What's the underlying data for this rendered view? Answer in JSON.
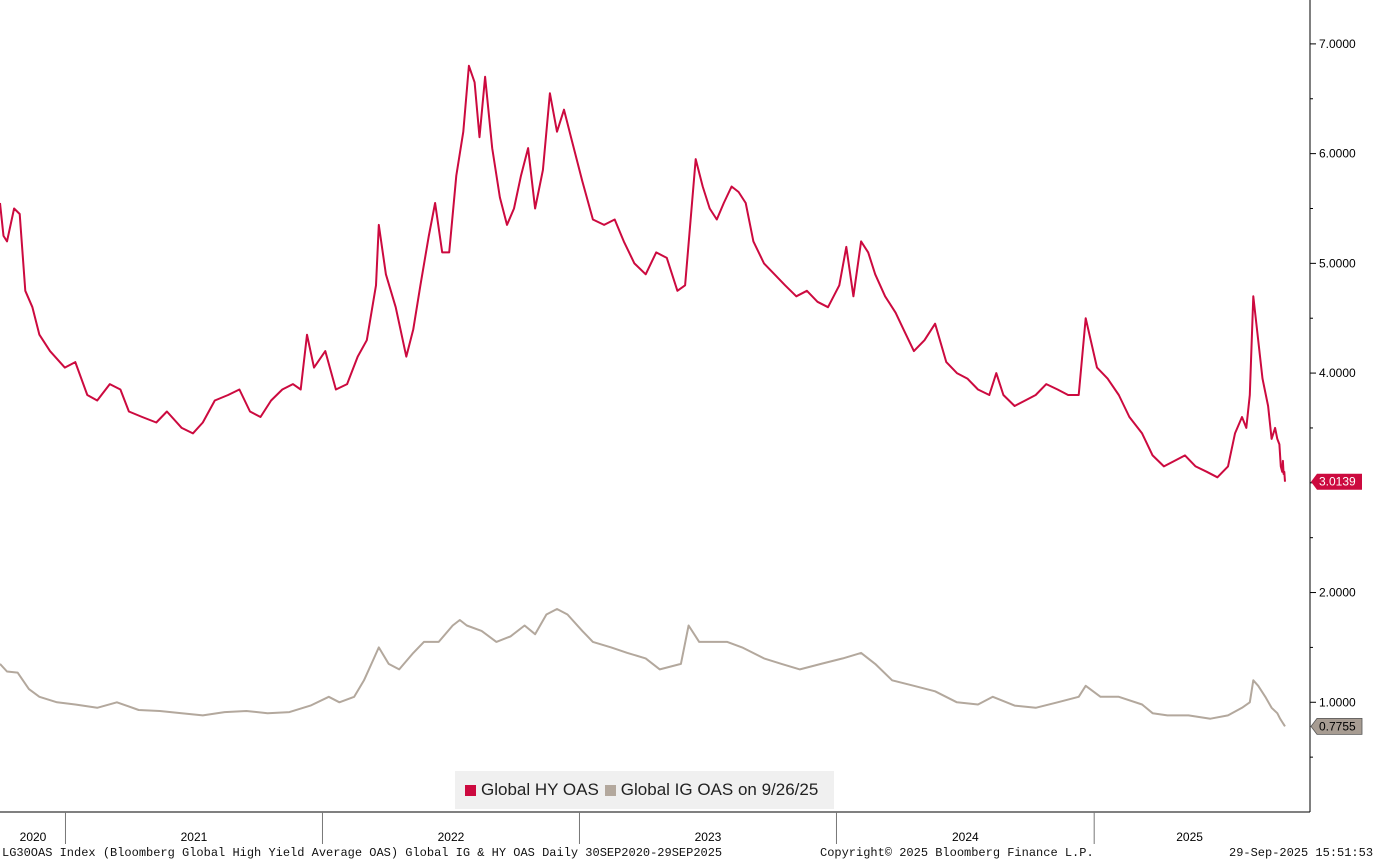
{
  "chart_data": {
    "type": "line",
    "title": "",
    "xlabel": "",
    "ylabel": "",
    "x_range": [
      "2020-09-30",
      "2025-09-29"
    ],
    "x_tick_labels": [
      "2020",
      "2021",
      "2022",
      "2023",
      "2024",
      "2025"
    ],
    "ylim": [
      0.0,
      7.4
    ],
    "y_ticks": [
      "1.0000",
      "2.0000",
      "3.0000",
      "4.0000",
      "5.0000",
      "6.0000",
      "7.0000"
    ],
    "y_axis_side": "right",
    "grid": false,
    "legend_position": "bottom-center",
    "series": [
      {
        "name": "Global HY OAS",
        "color": "#cc0a3f",
        "last_value_label": "3.0139",
        "points": [
          [
            "2020-09-30",
            5.55
          ],
          [
            "2020-10-05",
            5.25
          ],
          [
            "2020-10-10",
            5.2
          ],
          [
            "2020-10-20",
            5.5
          ],
          [
            "2020-10-28",
            5.45
          ],
          [
            "2020-11-05",
            4.75
          ],
          [
            "2020-11-15",
            4.6
          ],
          [
            "2020-11-25",
            4.35
          ],
          [
            "2020-12-10",
            4.2
          ],
          [
            "2020-12-31",
            4.05
          ],
          [
            "2021-01-15",
            4.1
          ],
          [
            "2021-02-01",
            3.8
          ],
          [
            "2021-02-15",
            3.75
          ],
          [
            "2021-03-05",
            3.9
          ],
          [
            "2021-03-20",
            3.85
          ],
          [
            "2021-04-01",
            3.65
          ],
          [
            "2021-04-20",
            3.6
          ],
          [
            "2021-05-10",
            3.55
          ],
          [
            "2021-05-25",
            3.65
          ],
          [
            "2021-06-15",
            3.5
          ],
          [
            "2021-07-01",
            3.45
          ],
          [
            "2021-07-15",
            3.55
          ],
          [
            "2021-08-01",
            3.75
          ],
          [
            "2021-08-20",
            3.8
          ],
          [
            "2021-09-05",
            3.85
          ],
          [
            "2021-09-20",
            3.65
          ],
          [
            "2021-10-05",
            3.6
          ],
          [
            "2021-10-20",
            3.75
          ],
          [
            "2021-11-05",
            3.85
          ],
          [
            "2021-11-20",
            3.9
          ],
          [
            "2021-12-01",
            3.85
          ],
          [
            "2021-12-10",
            4.35
          ],
          [
            "2021-12-20",
            4.05
          ],
          [
            "2022-01-05",
            4.2
          ],
          [
            "2022-01-20",
            3.85
          ],
          [
            "2022-02-05",
            3.9
          ],
          [
            "2022-02-20",
            4.15
          ],
          [
            "2022-03-05",
            4.3
          ],
          [
            "2022-03-18",
            4.8
          ],
          [
            "2022-03-22",
            5.35
          ],
          [
            "2022-04-01",
            4.9
          ],
          [
            "2022-04-15",
            4.6
          ],
          [
            "2022-04-30",
            4.15
          ],
          [
            "2022-05-10",
            4.4
          ],
          [
            "2022-05-20",
            4.8
          ],
          [
            "2022-06-01",
            5.25
          ],
          [
            "2022-06-10",
            5.55
          ],
          [
            "2022-06-20",
            5.1
          ],
          [
            "2022-06-30",
            5.1
          ],
          [
            "2022-07-10",
            5.8
          ],
          [
            "2022-07-20",
            6.2
          ],
          [
            "2022-07-28",
            6.8
          ],
          [
            "2022-08-05",
            6.65
          ],
          [
            "2022-08-12",
            6.15
          ],
          [
            "2022-08-20",
            6.7
          ],
          [
            "2022-08-30",
            6.05
          ],
          [
            "2022-09-10",
            5.6
          ],
          [
            "2022-09-20",
            5.35
          ],
          [
            "2022-09-30",
            5.5
          ],
          [
            "2022-10-10",
            5.8
          ],
          [
            "2022-10-20",
            6.05
          ],
          [
            "2022-10-30",
            5.5
          ],
          [
            "2022-11-10",
            5.85
          ],
          [
            "2022-11-20",
            6.55
          ],
          [
            "2022-11-30",
            6.2
          ],
          [
            "2022-12-10",
            6.4
          ],
          [
            "2022-12-20",
            6.15
          ],
          [
            "2023-01-05",
            5.75
          ],
          [
            "2023-01-20",
            5.4
          ],
          [
            "2023-02-05",
            5.35
          ],
          [
            "2023-02-20",
            5.4
          ],
          [
            "2023-03-05",
            5.2
          ],
          [
            "2023-03-20",
            5.0
          ],
          [
            "2023-04-05",
            4.9
          ],
          [
            "2023-04-20",
            5.1
          ],
          [
            "2023-05-05",
            5.05
          ],
          [
            "2023-05-20",
            4.75
          ],
          [
            "2023-05-31",
            4.8
          ],
          [
            "2023-06-15",
            5.95
          ],
          [
            "2023-06-25",
            5.7
          ],
          [
            "2023-07-05",
            5.5
          ],
          [
            "2023-07-15",
            5.4
          ],
          [
            "2023-07-25",
            5.55
          ],
          [
            "2023-08-05",
            5.7
          ],
          [
            "2023-08-15",
            5.65
          ],
          [
            "2023-08-25",
            5.55
          ],
          [
            "2023-09-05",
            5.2
          ],
          [
            "2023-09-20",
            5.0
          ],
          [
            "2023-10-05",
            4.9
          ],
          [
            "2023-10-20",
            4.8
          ],
          [
            "2023-11-05",
            4.7
          ],
          [
            "2023-11-20",
            4.75
          ],
          [
            "2023-12-05",
            4.65
          ],
          [
            "2023-12-20",
            4.6
          ],
          [
            "2024-01-05",
            4.8
          ],
          [
            "2024-01-15",
            5.15
          ],
          [
            "2024-01-25",
            4.7
          ],
          [
            "2024-02-05",
            5.2
          ],
          [
            "2024-02-15",
            5.1
          ],
          [
            "2024-02-25",
            4.9
          ],
          [
            "2024-03-10",
            4.7
          ],
          [
            "2024-03-25",
            4.55
          ],
          [
            "2024-04-05",
            4.4
          ],
          [
            "2024-04-20",
            4.2
          ],
          [
            "2024-05-05",
            4.3
          ],
          [
            "2024-05-20",
            4.45
          ],
          [
            "2024-06-05",
            4.1
          ],
          [
            "2024-06-20",
            4.0
          ],
          [
            "2024-07-05",
            3.95
          ],
          [
            "2024-07-20",
            3.85
          ],
          [
            "2024-08-05",
            3.8
          ],
          [
            "2024-08-15",
            4.0
          ],
          [
            "2024-08-25",
            3.8
          ],
          [
            "2024-09-10",
            3.7
          ],
          [
            "2024-09-25",
            3.75
          ],
          [
            "2024-10-10",
            3.8
          ],
          [
            "2024-10-25",
            3.9
          ],
          [
            "2024-11-10",
            3.85
          ],
          [
            "2024-11-25",
            3.8
          ],
          [
            "2024-12-10",
            3.8
          ],
          [
            "2024-12-20",
            4.5
          ],
          [
            "2025-01-05",
            4.05
          ],
          [
            "2025-01-20",
            3.95
          ],
          [
            "2025-02-05",
            3.8
          ],
          [
            "2025-02-20",
            3.6
          ],
          [
            "2025-03-10",
            3.45
          ],
          [
            "2025-03-25",
            3.25
          ],
          [
            "2025-04-10",
            3.15
          ],
          [
            "2025-04-25",
            3.2
          ],
          [
            "2025-05-10",
            3.25
          ],
          [
            "2025-05-25",
            3.15
          ],
          [
            "2025-06-10",
            3.1
          ],
          [
            "2025-06-25",
            3.05
          ],
          [
            "2025-07-10",
            3.15
          ],
          [
            "2025-07-20",
            3.45
          ],
          [
            "2025-07-30",
            3.6
          ],
          [
            "2025-08-05",
            3.5
          ],
          [
            "2025-08-10",
            3.8
          ],
          [
            "2025-08-15",
            4.7
          ],
          [
            "2025-08-22",
            4.3
          ],
          [
            "2025-08-28",
            3.95
          ],
          [
            "2025-09-05",
            3.7
          ],
          [
            "2025-09-10",
            3.4
          ],
          [
            "2025-09-15",
            3.5
          ],
          [
            "2025-09-18",
            3.4
          ],
          [
            "2025-09-21",
            3.35
          ],
          [
            "2025-09-23",
            3.15
          ],
          [
            "2025-09-25",
            3.1
          ],
          [
            "2025-09-26",
            3.2
          ],
          [
            "2025-09-27",
            3.08
          ],
          [
            "2025-09-28",
            3.1
          ],
          [
            "2025-09-29",
            3.01
          ]
        ]
      },
      {
        "name": "Global IG OAS on 9/26/25",
        "color": "#b3a89d",
        "last_value_label": "0.7755",
        "points": [
          [
            "2020-09-30",
            1.35
          ],
          [
            "2020-10-10",
            1.28
          ],
          [
            "2020-10-25",
            1.27
          ],
          [
            "2020-11-10",
            1.12
          ],
          [
            "2020-11-25",
            1.05
          ],
          [
            "2020-12-20",
            1.0
          ],
          [
            "2021-01-15",
            0.98
          ],
          [
            "2021-02-15",
            0.95
          ],
          [
            "2021-03-15",
            1.0
          ],
          [
            "2021-04-15",
            0.93
          ],
          [
            "2021-05-15",
            0.92
          ],
          [
            "2021-06-15",
            0.9
          ],
          [
            "2021-07-15",
            0.88
          ],
          [
            "2021-08-15",
            0.91
          ],
          [
            "2021-09-15",
            0.92
          ],
          [
            "2021-10-15",
            0.9
          ],
          [
            "2021-11-15",
            0.91
          ],
          [
            "2021-12-15",
            0.97
          ],
          [
            "2022-01-10",
            1.05
          ],
          [
            "2022-01-25",
            1.0
          ],
          [
            "2022-02-15",
            1.05
          ],
          [
            "2022-03-01",
            1.2
          ],
          [
            "2022-03-15",
            1.4
          ],
          [
            "2022-03-22",
            1.5
          ],
          [
            "2022-04-05",
            1.35
          ],
          [
            "2022-04-20",
            1.3
          ],
          [
            "2022-05-10",
            1.45
          ],
          [
            "2022-05-25",
            1.55
          ],
          [
            "2022-06-15",
            1.55
          ],
          [
            "2022-07-05",
            1.7
          ],
          [
            "2022-07-15",
            1.75
          ],
          [
            "2022-07-25",
            1.7
          ],
          [
            "2022-08-15",
            1.65
          ],
          [
            "2022-09-05",
            1.55
          ],
          [
            "2022-09-25",
            1.6
          ],
          [
            "2022-10-15",
            1.7
          ],
          [
            "2022-10-30",
            1.62
          ],
          [
            "2022-11-15",
            1.8
          ],
          [
            "2022-11-30",
            1.85
          ],
          [
            "2022-12-15",
            1.8
          ],
          [
            "2023-01-05",
            1.65
          ],
          [
            "2023-01-20",
            1.55
          ],
          [
            "2023-02-15",
            1.5
          ],
          [
            "2023-03-10",
            1.45
          ],
          [
            "2023-04-05",
            1.4
          ],
          [
            "2023-04-25",
            1.3
          ],
          [
            "2023-05-25",
            1.35
          ],
          [
            "2023-06-05",
            1.7
          ],
          [
            "2023-06-20",
            1.55
          ],
          [
            "2023-07-10",
            1.55
          ],
          [
            "2023-07-30",
            1.55
          ],
          [
            "2023-08-20",
            1.5
          ],
          [
            "2023-09-20",
            1.4
          ],
          [
            "2023-10-15",
            1.35
          ],
          [
            "2023-11-10",
            1.3
          ],
          [
            "2023-12-10",
            1.35
          ],
          [
            "2024-01-10",
            1.4
          ],
          [
            "2024-02-05",
            1.45
          ],
          [
            "2024-02-25",
            1.35
          ],
          [
            "2024-03-20",
            1.2
          ],
          [
            "2024-04-20",
            1.15
          ],
          [
            "2024-05-20",
            1.1
          ],
          [
            "2024-06-20",
            1.0
          ],
          [
            "2024-07-20",
            0.98
          ],
          [
            "2024-08-10",
            1.05
          ],
          [
            "2024-09-10",
            0.97
          ],
          [
            "2024-10-10",
            0.95
          ],
          [
            "2024-11-10",
            1.0
          ],
          [
            "2024-12-10",
            1.05
          ],
          [
            "2024-12-20",
            1.15
          ],
          [
            "2025-01-10",
            1.05
          ],
          [
            "2025-02-05",
            1.05
          ],
          [
            "2025-03-10",
            0.98
          ],
          [
            "2025-03-25",
            0.9
          ],
          [
            "2025-04-15",
            0.88
          ],
          [
            "2025-05-15",
            0.88
          ],
          [
            "2025-06-15",
            0.85
          ],
          [
            "2025-07-10",
            0.88
          ],
          [
            "2025-07-30",
            0.95
          ],
          [
            "2025-08-10",
            1.0
          ],
          [
            "2025-08-15",
            1.2
          ],
          [
            "2025-08-22",
            1.15
          ],
          [
            "2025-09-01",
            1.05
          ],
          [
            "2025-09-10",
            0.95
          ],
          [
            "2025-09-18",
            0.9
          ],
          [
            "2025-09-22",
            0.85
          ],
          [
            "2025-09-25",
            0.82
          ],
          [
            "2025-09-27",
            0.8
          ],
          [
            "2025-09-29",
            0.78
          ]
        ]
      }
    ],
    "footer": {
      "description": "LG30OAS Index (Bloomberg Global High Yield Average OAS) Global IG & HY OAS  Daily 30SEP2020-29SEP2025",
      "copyright": "Copyright© 2025 Bloomberg Finance L.P.",
      "timestamp": "29-Sep-2025 15:51:53"
    }
  }
}
